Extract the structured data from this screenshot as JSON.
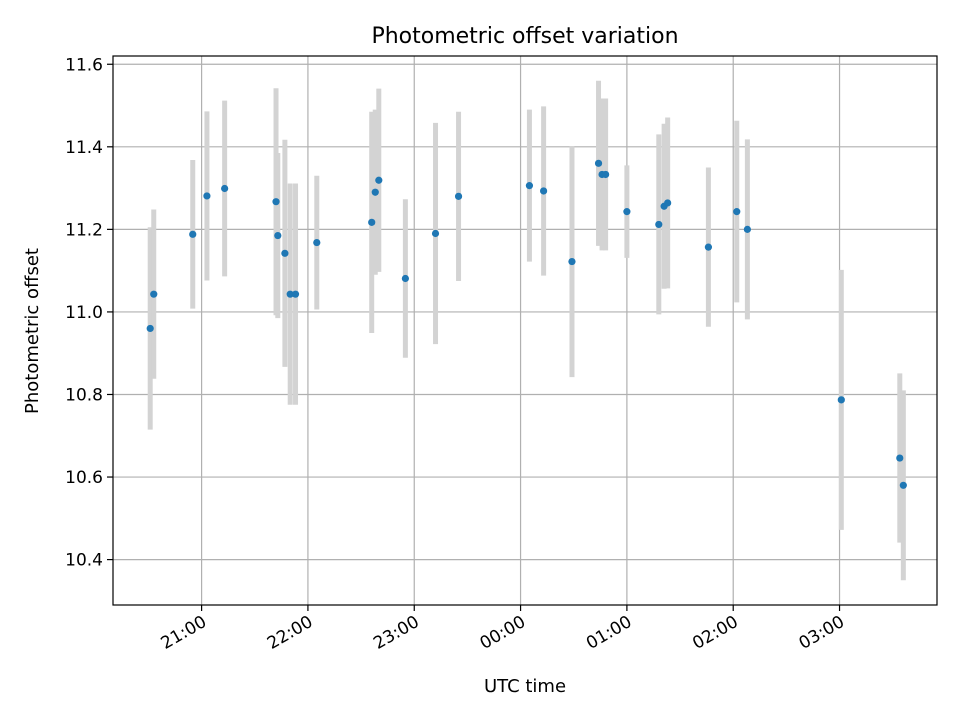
{
  "chart_data": {
    "type": "scatter",
    "title": "Photometric offset variation",
    "xlabel": "UTC time",
    "ylabel": "Photometric offset",
    "x_axis": "time",
    "xlim": [
      "20:10",
      "03:55"
    ],
    "ylim": [
      10.29,
      11.62
    ],
    "x_ticks": [
      "21:00",
      "22:00",
      "23:00",
      "00:00",
      "01:00",
      "02:00",
      "03:00"
    ],
    "y_ticks": [
      "10.4",
      "10.6",
      "10.8",
      "11.0",
      "11.2",
      "11.4",
      "11.6"
    ],
    "y_tick_values": [
      10.4,
      10.6,
      10.8,
      11.0,
      11.2,
      11.4,
      11.6
    ],
    "grid": true,
    "marker_color": "#1f77b4",
    "errorbar_color": "#d3d3d3",
    "points": [
      {
        "time": "20:31",
        "y": 10.96,
        "yerr": 0.245
      },
      {
        "time": "20:33",
        "y": 11.043,
        "yerr": 0.205
      },
      {
        "time": "20:55",
        "y": 11.188,
        "yerr": 0.18
      },
      {
        "time": "21:03",
        "y": 11.281,
        "yerr": 0.205
      },
      {
        "time": "21:13",
        "y": 11.299,
        "yerr": 0.213
      },
      {
        "time": "21:42",
        "y": 11.267,
        "yerr": 0.275
      },
      {
        "time": "21:43",
        "y": 11.185,
        "yerr": 0.2
      },
      {
        "time": "21:47",
        "y": 11.142,
        "yerr": 0.275
      },
      {
        "time": "21:50",
        "y": 11.043,
        "yerr": 0.268
      },
      {
        "time": "21:53",
        "y": 11.043,
        "yerr": 0.268
      },
      {
        "time": "22:05",
        "y": 11.168,
        "yerr": 0.162
      },
      {
        "time": "22:36",
        "y": 11.217,
        "yerr": 0.268
      },
      {
        "time": "22:38",
        "y": 11.29,
        "yerr": 0.2
      },
      {
        "time": "22:40",
        "y": 11.319,
        "yerr": 0.222
      },
      {
        "time": "22:55",
        "y": 11.081,
        "yerr": 0.192
      },
      {
        "time": "23:12",
        "y": 11.19,
        "yerr": 0.268
      },
      {
        "time": "23:25",
        "y": 11.28,
        "yerr": 0.205
      },
      {
        "time": "00:05",
        "y": 11.306,
        "yerr": 0.184
      },
      {
        "time": "00:13",
        "y": 11.293,
        "yerr": 0.205
      },
      {
        "time": "00:29",
        "y": 11.122,
        "yerr": 0.28
      },
      {
        "time": "00:44",
        "y": 11.36,
        "yerr": 0.2
      },
      {
        "time": "00:46",
        "y": 11.333,
        "yerr": 0.184
      },
      {
        "time": "00:48",
        "y": 11.333,
        "yerr": 0.184
      },
      {
        "time": "01:00",
        "y": 11.243,
        "yerr": 0.112
      },
      {
        "time": "01:18",
        "y": 11.212,
        "yerr": 0.218
      },
      {
        "time": "01:21",
        "y": 11.256,
        "yerr": 0.2
      },
      {
        "time": "01:23",
        "y": 11.264,
        "yerr": 0.207
      },
      {
        "time": "01:46",
        "y": 11.157,
        "yerr": 0.193
      },
      {
        "time": "02:02",
        "y": 11.243,
        "yerr": 0.22
      },
      {
        "time": "02:08",
        "y": 11.2,
        "yerr": 0.218
      },
      {
        "time": "03:01",
        "y": 10.787,
        "yerr": 0.315
      },
      {
        "time": "03:34",
        "y": 10.646,
        "yerr": 0.205
      },
      {
        "time": "03:36",
        "y": 10.58,
        "yerr": 0.23
      }
    ]
  }
}
